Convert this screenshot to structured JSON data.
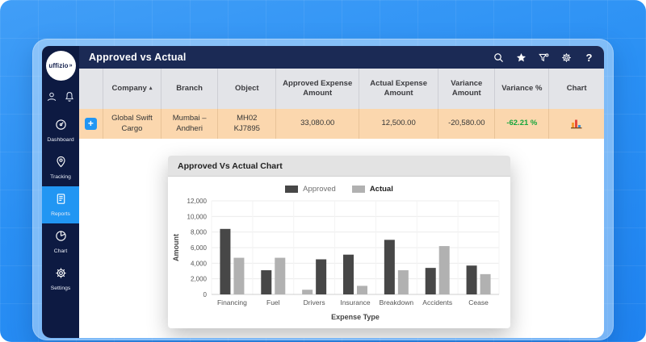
{
  "header": {
    "title": "Approved vs Actual",
    "icons": [
      {
        "name": "search-icon"
      },
      {
        "name": "favorite-star-icon"
      },
      {
        "name": "filter-icon"
      },
      {
        "name": "settings-gear-icon"
      },
      {
        "name": "help-icon",
        "glyph": "?"
      }
    ]
  },
  "sidebar": {
    "logo_text": "uffizio",
    "logo_mark": "»",
    "top_icons": [
      {
        "name": "user-icon"
      },
      {
        "name": "notifications-bell-icon"
      }
    ],
    "items": [
      {
        "label": "Dashboard",
        "icon": "dashboard-icon",
        "active": false
      },
      {
        "label": "Tracking",
        "icon": "tracking-icon",
        "active": false
      },
      {
        "label": "Reports",
        "icon": "reports-icon",
        "active": true
      },
      {
        "label": "Chart",
        "icon": "chart-pie-icon",
        "active": false
      },
      {
        "label": "Settings",
        "icon": "settings-icon",
        "active": false
      }
    ]
  },
  "table": {
    "columns": [
      {
        "label": "",
        "width": "4.6%"
      },
      {
        "label": "Company",
        "width": "11.1%",
        "sorted": "asc"
      },
      {
        "label": "Branch",
        "width": "10.8%"
      },
      {
        "label": "Object",
        "width": "11.1%"
      },
      {
        "label": "Approved Expense Amount",
        "width": "15.8%"
      },
      {
        "label": "Actual Expense Amount",
        "width": "15.1%"
      },
      {
        "label": "Variance Amount",
        "width": "10.8%"
      },
      {
        "label": "Variance %",
        "width": "10.3%"
      },
      {
        "label": "Chart",
        "width": "10.4%"
      }
    ],
    "rows": [
      {
        "company": "Global Swift Cargo",
        "branch": "Mumbai – Andheri",
        "object_line1": "MH02",
        "object_line2": "KJ7895",
        "approved": "33,080.00",
        "actual": "12,500.00",
        "variance": "-20,580.00",
        "variance_pct": "-62.21 %"
      }
    ]
  },
  "popup": {
    "title": "Approved Vs Actual Chart"
  },
  "chart_data": {
    "type": "bar",
    "title": "Approved Vs Actual Chart",
    "categories": [
      "Financing",
      "Fuel",
      "Drivers",
      "Insurance",
      "Breakdown",
      "Accidents",
      "Cease"
    ],
    "series": [
      {
        "name": "Approved",
        "color": "#474747",
        "values": [
          8400,
          3100,
          4500,
          5100,
          7000,
          3400,
          3700
        ]
      },
      {
        "name": "Actual",
        "color": "#b1b1b1",
        "emphasis": true,
        "values": [
          4700,
          4700,
          600,
          1100,
          3100,
          6200,
          2600
        ]
      }
    ],
    "xlabel": "Expense Type",
    "ylabel": "Amount",
    "ylim": [
      0,
      12000
    ],
    "yticks": [
      0,
      2000,
      4000,
      6000,
      8000,
      10000,
      12000
    ],
    "grid": true,
    "legend_position": "top",
    "swapped_order_categories": [
      "Drivers"
    ]
  },
  "colors": {
    "accent_blue": "#2196f3",
    "sidebar_navy": "#0d1a42",
    "header_navy": "#1b2a55",
    "row_peach": "#fbd7ae",
    "table_head_gray": "#e3e4e8",
    "variance_green": "#17a63c",
    "approved_bar": "#474747",
    "actual_bar": "#b1b1b1",
    "background_blue": "#2a90f4"
  }
}
